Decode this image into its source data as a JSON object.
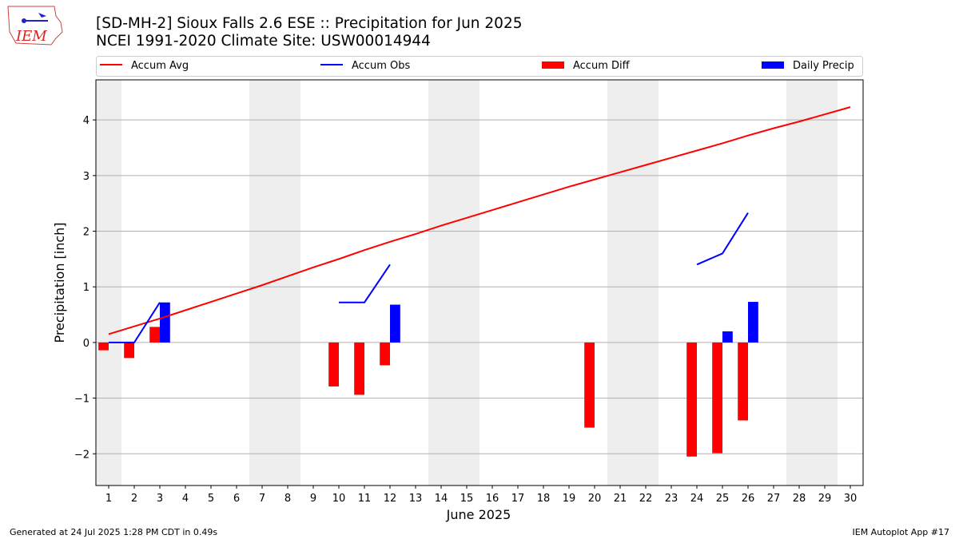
{
  "logo_text": "IEM",
  "chart_data": {
    "type": "combo",
    "title": "[SD-MH-2] Sioux Falls 2.6 ESE :: Precipitation for Jun 2025",
    "subtitle": "NCEI 1991-2020 Climate Site: USW00014944",
    "xlabel": "June 2025",
    "ylabel": "Precipitation [inch]",
    "x": [
      1,
      2,
      3,
      4,
      5,
      6,
      7,
      8,
      9,
      10,
      11,
      12,
      13,
      14,
      15,
      16,
      17,
      18,
      19,
      20,
      21,
      22,
      23,
      24,
      25,
      26,
      27,
      28,
      29,
      30
    ],
    "xlim": [
      0.5,
      30.5
    ],
    "ylim": [
      -2.57,
      4.72
    ],
    "xticks": [
      1,
      2,
      3,
      4,
      5,
      6,
      7,
      8,
      9,
      10,
      11,
      12,
      13,
      14,
      15,
      16,
      17,
      18,
      19,
      20,
      21,
      22,
      23,
      24,
      25,
      26,
      27,
      28,
      29,
      30
    ],
    "yticks": [
      {
        "value": -2,
        "label": "−2"
      },
      {
        "value": -1,
        "label": "−1"
      },
      0,
      1,
      2,
      3,
      4
    ],
    "grid": true,
    "shaded_days": [
      1,
      7,
      8,
      14,
      15,
      21,
      22,
      28,
      29
    ],
    "shade_color": "#eeeeee",
    "series": [
      {
        "name": "Accum Avg",
        "type": "line",
        "color": "#ff0000",
        "values": [
          0.15,
          0.29,
          0.43,
          0.58,
          0.73,
          0.88,
          1.03,
          1.19,
          1.35,
          1.5,
          1.66,
          1.81,
          1.95,
          2.1,
          2.24,
          2.38,
          2.52,
          2.66,
          2.8,
          2.93,
          3.06,
          3.19,
          3.32,
          3.45,
          3.58,
          3.72,
          3.85,
          3.97,
          4.1,
          4.23
        ]
      },
      {
        "name": "Accum Obs",
        "type": "line",
        "color": "#0000ff",
        "values": [
          0,
          0,
          0.72,
          null,
          null,
          null,
          null,
          null,
          null,
          0.72,
          0.72,
          1.4,
          null,
          null,
          null,
          null,
          null,
          null,
          null,
          null,
          null,
          null,
          null,
          1.4,
          1.6,
          2.33,
          null,
          null,
          null,
          null
        ]
      },
      {
        "name": "Accum Diff",
        "type": "bar",
        "side": "left",
        "color": "#ff0000",
        "values": [
          -0.14,
          -0.28,
          0.28,
          null,
          null,
          null,
          null,
          null,
          null,
          -0.79,
          -0.94,
          -0.41,
          null,
          null,
          null,
          null,
          null,
          null,
          null,
          -1.53,
          null,
          null,
          null,
          -2.05,
          -1.99,
          -1.4,
          null,
          null,
          null,
          null
        ]
      },
      {
        "name": "Daily Precip",
        "type": "bar",
        "side": "right",
        "color": "#0000ff",
        "values": [
          null,
          null,
          0.72,
          null,
          null,
          null,
          null,
          null,
          null,
          null,
          null,
          0.68,
          null,
          null,
          null,
          null,
          null,
          null,
          null,
          null,
          null,
          null,
          null,
          null,
          0.2,
          0.73,
          null,
          null,
          null,
          null
        ]
      }
    ]
  },
  "footer": {
    "left": "Generated at 24 Jul 2025 1:28 PM CDT in 0.49s",
    "right": "IEM Autoplot App #17"
  }
}
